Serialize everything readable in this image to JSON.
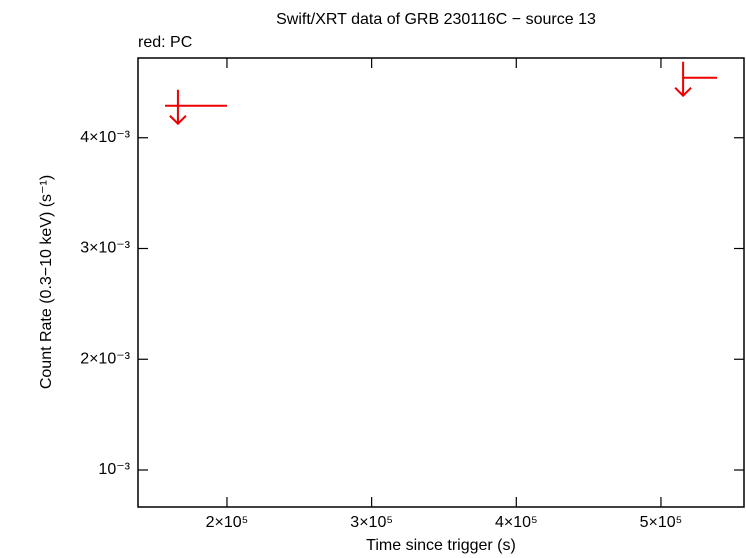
{
  "chart_data": {
    "type": "upper-limit",
    "title": "Swift/XRT data of GRB 230116C − source 13",
    "subtitle": "red: PC",
    "x_label": "Time since trigger (s)",
    "y_label": "Count Rate (0.3−10 keV) (s⁻¹)",
    "series": [
      {
        "name": "PC",
        "color": "#ee0000",
        "x": [
          166100,
          515300
        ],
        "x_start": [
          157200,
          515300
        ],
        "x_end": [
          200000,
          538800
        ],
        "values": [
          0.004289,
          0.004542
        ]
      }
    ],
    "xlim": [
      138500,
      557400
    ],
    "ylim": [
      0.000666,
      0.00472
    ],
    "xticks": [
      {
        "value": 200000,
        "label": "2×10⁵"
      },
      {
        "value": 300000,
        "label": "3×10⁵"
      },
      {
        "value": 400000,
        "label": "4×10⁵"
      },
      {
        "value": 500000,
        "label": "5×10⁵"
      }
    ],
    "yticks": [
      {
        "value": 0.001,
        "label": "10⁻³"
      },
      {
        "value": 0.002,
        "label": "2×10⁻³"
      },
      {
        "value": 0.003,
        "label": "3×10⁻³"
      },
      {
        "value": 0.004,
        "label": "4×10⁻³"
      }
    ]
  }
}
